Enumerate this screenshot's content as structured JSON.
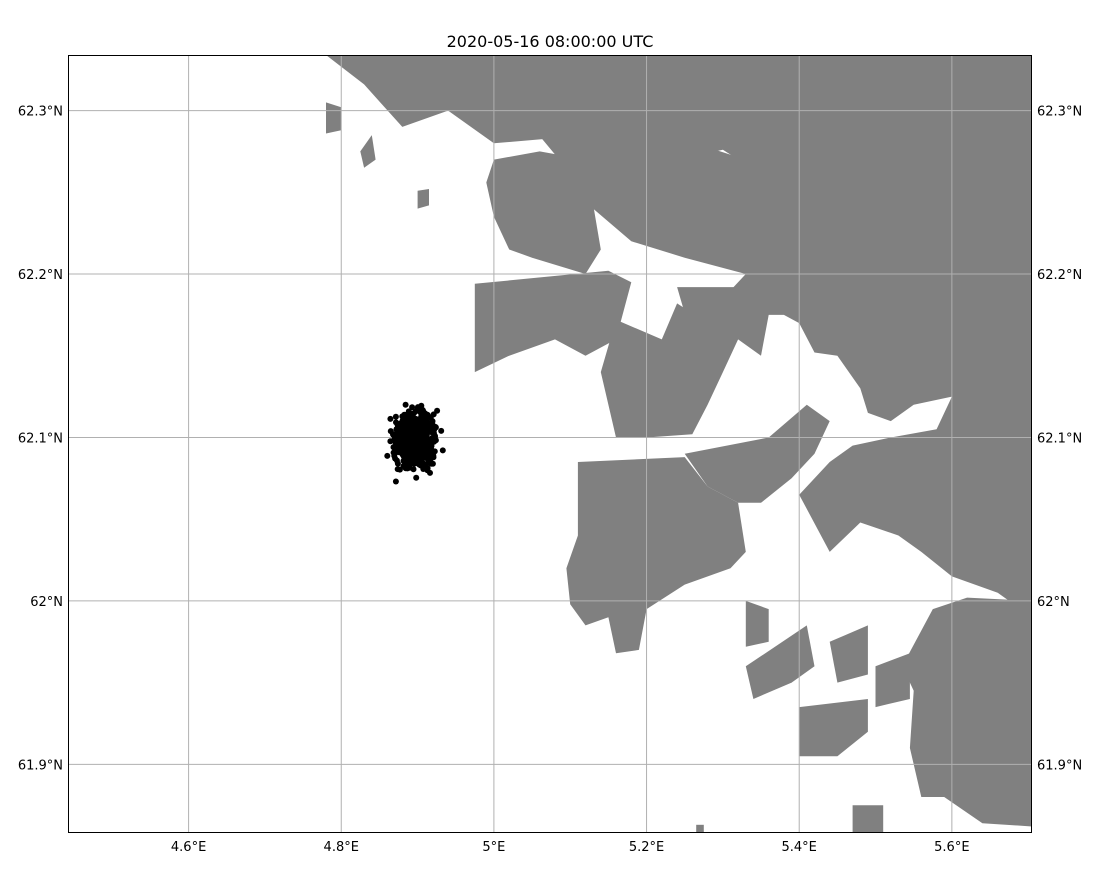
{
  "title": "2020-05-16 08:00:00 UTC",
  "chart_data": {
    "type": "scatter",
    "title": "2020-05-16 08:00:00 UTC",
    "projection": "lon-lat",
    "xlim": [
      4.442,
      5.705
    ],
    "ylim": [
      61.858,
      62.334
    ],
    "grid": true,
    "xticks": [
      {
        "value": 4.6,
        "label": "4.6°E"
      },
      {
        "value": 4.8,
        "label": "4.8°E"
      },
      {
        "value": 5.0,
        "label": "5°E"
      },
      {
        "value": 5.2,
        "label": "5.2°E"
      },
      {
        "value": 5.4,
        "label": "5.4°E"
      },
      {
        "value": 5.6,
        "label": "5.6°E"
      }
    ],
    "yticks": [
      {
        "value": 61.9,
        "label": "61.9°N"
      },
      {
        "value": 62.0,
        "label": "62°N"
      },
      {
        "value": 62.1,
        "label": "62.1°N"
      },
      {
        "value": 62.2,
        "label": "62.2°N"
      },
      {
        "value": 62.3,
        "label": "62.3°N"
      }
    ],
    "ytick_labels_both_sides": true,
    "land_color": "#808080",
    "ocean_color": "#ffffff",
    "particle_color": "#000000",
    "particle_cloud": {
      "center_lon": 4.897,
      "center_lat": 62.098,
      "count": 900,
      "lon_extent": [
        4.842,
        4.955
      ],
      "lat_extent": [
        62.065,
        62.133
      ]
    },
    "land_polygons": [
      [
        [
          4.78,
          62.334
        ],
        [
          5.705,
          62.334
        ],
        [
          5.705,
          62.21
        ],
        [
          5.62,
          62.24
        ],
        [
          5.53,
          62.26
        ],
        [
          5.45,
          62.256
        ],
        [
          5.36,
          62.258
        ],
        [
          5.3,
          62.276
        ],
        [
          5.24,
          62.27
        ],
        [
          5.16,
          62.272
        ],
        [
          5.1,
          62.284
        ],
        [
          5.0,
          62.28
        ],
        [
          4.94,
          62.3
        ],
        [
          4.88,
          62.29
        ],
        [
          4.83,
          62.316
        ]
      ],
      [
        [
          4.78,
          62.305
        ],
        [
          4.8,
          62.302
        ],
        [
          4.8,
          62.288
        ],
        [
          4.78,
          62.286
        ]
      ],
      [
        [
          4.99,
          62.256
        ],
        [
          5.0,
          62.27
        ],
        [
          5.06,
          62.275
        ],
        [
          5.12,
          62.27
        ],
        [
          5.14,
          62.215
        ],
        [
          5.12,
          62.2
        ],
        [
          5.05,
          62.21
        ],
        [
          5.02,
          62.215
        ],
        [
          5.0,
          62.235
        ]
      ],
      [
        [
          4.975,
          62.194
        ],
        [
          5.15,
          62.202
        ],
        [
          5.18,
          62.195
        ],
        [
          5.16,
          62.16
        ],
        [
          5.12,
          62.15
        ],
        [
          5.08,
          62.16
        ],
        [
          5.02,
          62.15
        ],
        [
          4.975,
          62.14
        ]
      ],
      [
        [
          5.05,
          62.29
        ],
        [
          5.15,
          62.28
        ],
        [
          5.2,
          62.275
        ],
        [
          5.27,
          62.279
        ],
        [
          5.33,
          62.27
        ],
        [
          5.38,
          62.268
        ],
        [
          5.45,
          62.262
        ],
        [
          5.52,
          62.262
        ],
        [
          5.56,
          62.255
        ],
        [
          5.6,
          62.252
        ],
        [
          5.705,
          62.262
        ],
        [
          5.705,
          61.99
        ],
        [
          5.66,
          62.005
        ],
        [
          5.6,
          62.015
        ],
        [
          5.56,
          62.03
        ],
        [
          5.53,
          62.04
        ],
        [
          5.48,
          62.048
        ],
        [
          5.44,
          62.03
        ],
        [
          5.4,
          62.065
        ],
        [
          5.44,
          62.085
        ],
        [
          5.47,
          62.095
        ],
        [
          5.52,
          62.1
        ],
        [
          5.58,
          62.105
        ],
        [
          5.6,
          62.125
        ],
        [
          5.55,
          62.12
        ],
        [
          5.52,
          62.11
        ],
        [
          5.49,
          62.115
        ],
        [
          5.48,
          62.13
        ],
        [
          5.45,
          62.15
        ],
        [
          5.42,
          62.152
        ],
        [
          5.4,
          62.17
        ],
        [
          5.38,
          62.175
        ],
        [
          5.36,
          62.175
        ],
        [
          5.35,
          62.15
        ],
        [
          5.32,
          62.16
        ],
        [
          5.3,
          62.14
        ],
        [
          5.28,
          62.12
        ],
        [
          5.26,
          62.102
        ],
        [
          5.2,
          62.1
        ],
        [
          5.16,
          62.1
        ],
        [
          5.14,
          62.14
        ],
        [
          5.16,
          62.172
        ],
        [
          5.22,
          62.16
        ],
        [
          5.24,
          62.182
        ],
        [
          5.28,
          62.17
        ],
        [
          5.31,
          62.19
        ],
        [
          5.33,
          62.2
        ],
        [
          5.25,
          62.21
        ],
        [
          5.18,
          62.22
        ],
        [
          5.13,
          62.24
        ],
        [
          5.1,
          62.262
        ]
      ],
      [
        [
          5.13,
          62.18
        ],
        [
          5.16,
          62.178
        ],
        [
          5.16,
          62.16
        ],
        [
          5.13,
          62.162
        ]
      ],
      [
        [
          5.24,
          62.192
        ],
        [
          5.32,
          62.192
        ],
        [
          5.32,
          62.16
        ],
        [
          5.26,
          62.16
        ]
      ],
      [
        [
          5.11,
          62.085
        ],
        [
          5.25,
          62.088
        ],
        [
          5.28,
          62.07
        ],
        [
          5.32,
          62.06
        ],
        [
          5.33,
          62.03
        ],
        [
          5.31,
          62.02
        ],
        [
          5.25,
          62.01
        ],
        [
          5.2,
          61.995
        ],
        [
          5.19,
          61.97
        ],
        [
          5.16,
          61.968
        ],
        [
          5.15,
          61.99
        ],
        [
          5.12,
          61.985
        ],
        [
          5.1,
          61.998
        ],
        [
          5.095,
          62.02
        ],
        [
          5.11,
          62.04
        ],
        [
          5.11,
          62.06
        ]
      ],
      [
        [
          5.25,
          62.09
        ],
        [
          5.36,
          62.1
        ],
        [
          5.41,
          62.12
        ],
        [
          5.44,
          62.11
        ],
        [
          5.42,
          62.09
        ],
        [
          5.39,
          62.075
        ],
        [
          5.35,
          62.06
        ],
        [
          5.32,
          62.06
        ],
        [
          5.28,
          62.07
        ]
      ],
      [
        [
          5.33,
          62.0
        ],
        [
          5.36,
          61.995
        ],
        [
          5.36,
          61.975
        ],
        [
          5.33,
          61.972
        ]
      ],
      [
        [
          5.33,
          61.96
        ],
        [
          5.41,
          61.985
        ],
        [
          5.42,
          61.96
        ],
        [
          5.39,
          61.95
        ],
        [
          5.34,
          61.94
        ]
      ],
      [
        [
          5.4,
          61.935
        ],
        [
          5.49,
          61.94
        ],
        [
          5.49,
          61.92
        ],
        [
          5.45,
          61.905
        ],
        [
          5.4,
          61.905
        ]
      ],
      [
        [
          5.44,
          61.975
        ],
        [
          5.49,
          61.985
        ],
        [
          5.49,
          61.955
        ],
        [
          5.45,
          61.95
        ]
      ],
      [
        [
          5.535,
          61.96
        ],
        [
          5.575,
          61.995
        ],
        [
          5.62,
          62.002
        ],
        [
          5.705,
          62.0
        ],
        [
          5.705,
          61.862
        ],
        [
          5.64,
          61.864
        ],
        [
          5.59,
          61.88
        ],
        [
          5.56,
          61.88
        ],
        [
          5.545,
          61.91
        ],
        [
          5.55,
          61.945
        ]
      ],
      [
        [
          5.5,
          61.96
        ],
        [
          5.545,
          61.968
        ],
        [
          5.545,
          61.94
        ],
        [
          5.5,
          61.935
        ]
      ],
      [
        [
          4.99,
          62.338
        ],
        [
          5.01,
          62.325
        ],
        [
          5.01,
          62.318
        ],
        [
          4.985,
          62.32
        ]
      ],
      [
        [
          4.825,
          62.275
        ],
        [
          4.84,
          62.285
        ],
        [
          4.845,
          62.27
        ],
        [
          4.83,
          62.265
        ]
      ],
      [
        [
          4.9,
          62.251
        ],
        [
          4.915,
          62.252
        ],
        [
          4.915,
          62.242
        ],
        [
          4.9,
          62.24
        ]
      ],
      [
        [
          5.265,
          61.863
        ],
        [
          5.275,
          61.863
        ],
        [
          5.275,
          61.858
        ],
        [
          5.265,
          61.858
        ]
      ],
      [
        [
          5.47,
          61.875
        ],
        [
          5.51,
          61.875
        ],
        [
          5.51,
          61.858
        ],
        [
          5.47,
          61.858
        ]
      ]
    ]
  }
}
